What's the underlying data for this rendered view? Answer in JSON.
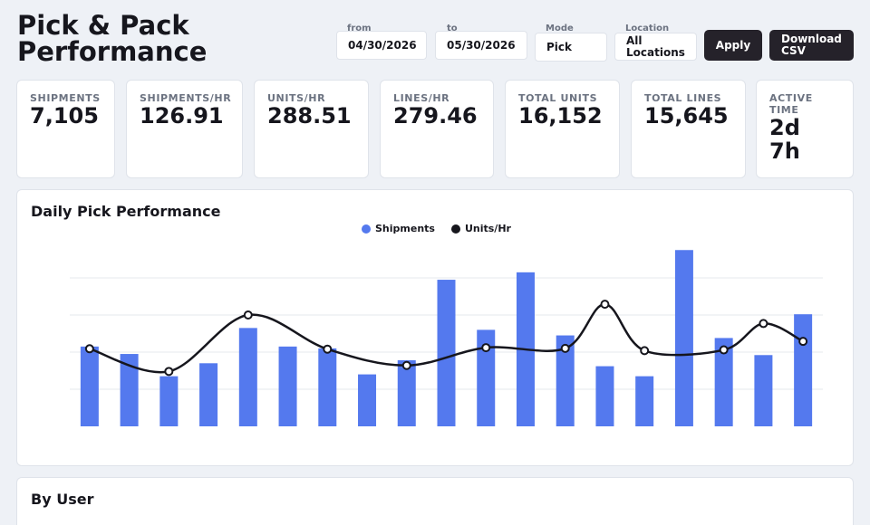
{
  "header": {
    "title": "Pick & Pack Performance"
  },
  "filters": {
    "from": {
      "label": "from",
      "value": "04/30/2026"
    },
    "to": {
      "label": "to",
      "value": "05/30/2026"
    },
    "mode": {
      "label": "Mode",
      "value": "Pick"
    },
    "location": {
      "label": "Location",
      "value": "All Locations"
    },
    "apply_label": "Apply",
    "download_label": "Download CSV"
  },
  "stats": [
    {
      "label": "SHIPMENTS",
      "value": "7,105"
    },
    {
      "label": "SHIPMENTS/HR",
      "value": "126.91"
    },
    {
      "label": "UNITS/HR",
      "value": "288.51"
    },
    {
      "label": "LINES/HR",
      "value": "279.46"
    },
    {
      "label": "TOTAL UNITS",
      "value": "16,152"
    },
    {
      "label": "TOTAL LINES",
      "value": "15,645"
    },
    {
      "label": "ACTIVE TIME",
      "value": "2d 7h"
    }
  ],
  "colors": {
    "bar": "#5479ee",
    "line": "#16161d",
    "button": "#25222a"
  },
  "chart_data": {
    "type": "bar",
    "title": "Daily Pick Performance",
    "grid": true,
    "legend": "top-center",
    "ylim": [
      0,
      500
    ],
    "series": [
      {
        "name": "Shipments",
        "type": "bar",
        "values": [
          215,
          195,
          135,
          170,
          265,
          215,
          210,
          140,
          178,
          395,
          260,
          415,
          245,
          162,
          135,
          475,
          238,
          192,
          302
        ]
      },
      {
        "name": "Units/Hr",
        "type": "line",
        "values": [
          209,
          null,
          148,
          null,
          300,
          null,
          208,
          null,
          164,
          null,
          212,
          null,
          210,
          329,
          204,
          null,
          206,
          277,
          229
        ]
      }
    ]
  },
  "by_user": {
    "title": "By User"
  }
}
